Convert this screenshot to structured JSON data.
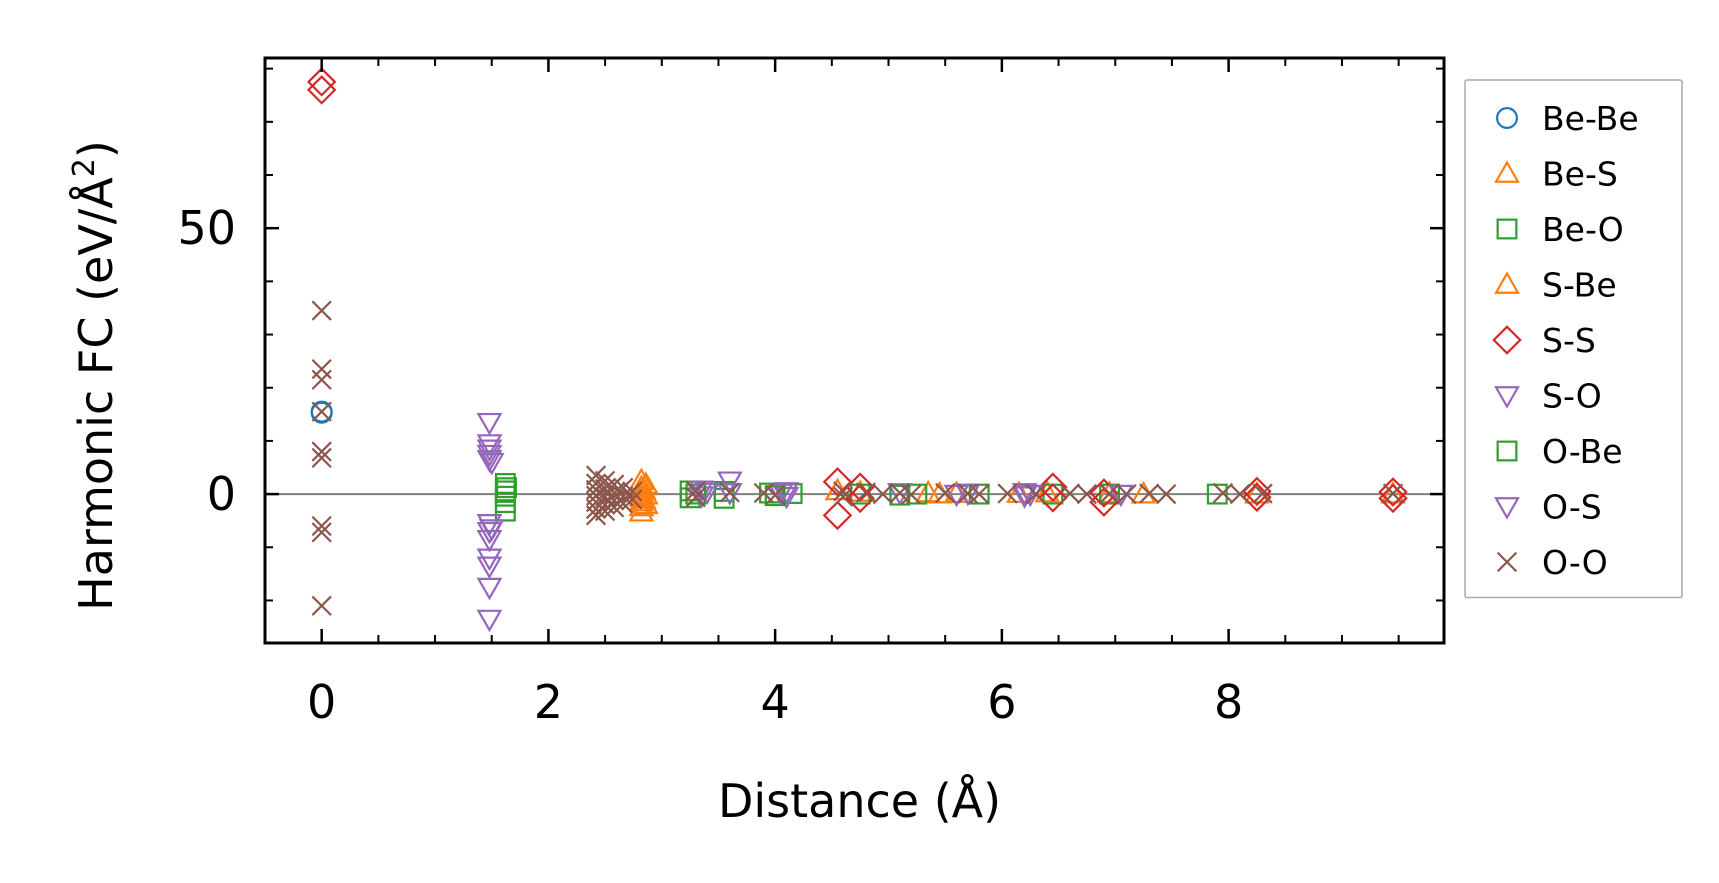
{
  "chart_data": {
    "type": "scatter",
    "title": "",
    "xlabel": "Distance (Å)",
    "ylabel": {
      "main": "Harmonic FC (eV/Å",
      "superscript": "2",
      "close": ")"
    },
    "xlim": [
      -0.5,
      9.9
    ],
    "ylim": [
      -28,
      82
    ],
    "x_ticks": [
      0,
      2,
      4,
      6,
      8
    ],
    "x_tick_labels": [
      "0",
      "2",
      "4",
      "6",
      "8"
    ],
    "y_ticks": [
      0,
      50
    ],
    "y_tick_labels": [
      "0",
      "50"
    ],
    "x_minor_step": 0.5,
    "y_minor_step": 10,
    "zero_line": true,
    "grid": false,
    "legend_position": "outside-right",
    "series": [
      {
        "name": "Be-Be",
        "marker": "circle",
        "color": "#1f77b4",
        "points": [
          [
            0,
            15.5
          ],
          [
            0,
            15.3
          ]
        ]
      },
      {
        "name": "Be-S",
        "marker": "triangle-up",
        "color": "#ff7f0e",
        "points": [
          [
            2.82,
            2.5
          ],
          [
            2.82,
            1.2
          ],
          [
            2.82,
            0.3
          ],
          [
            2.82,
            -0.6
          ],
          [
            2.82,
            -1.5
          ],
          [
            2.82,
            -2.4
          ],
          [
            2.82,
            -3.4
          ],
          [
            2.86,
            1.8
          ],
          [
            2.86,
            -0.2
          ],
          [
            2.86,
            -2.0
          ],
          [
            4.55,
            0.6
          ],
          [
            4.75,
            0.3
          ],
          [
            5.35,
            0.2
          ],
          [
            5.6,
            0.1
          ],
          [
            6.4,
            0.2
          ],
          [
            6.95,
            0.1
          ],
          [
            7.25,
            0.0
          ],
          [
            8.25,
            0.0
          ],
          [
            9.45,
            0.0
          ]
        ]
      },
      {
        "name": "Be-O",
        "marker": "square",
        "color": "#2ca02c",
        "points": [
          [
            1.62,
            2.0
          ],
          [
            1.62,
            0.6
          ],
          [
            1.62,
            -0.4
          ],
          [
            1.62,
            -1.6
          ],
          [
            1.62,
            -3.2
          ],
          [
            3.25,
            0.6
          ],
          [
            3.25,
            -0.7
          ],
          [
            3.55,
            0.5
          ],
          [
            3.55,
            -0.8
          ],
          [
            3.95,
            0.2
          ],
          [
            4.15,
            0.1
          ],
          [
            4.75,
            0.0
          ],
          [
            5.25,
            0.0
          ],
          [
            5.8,
            0.0
          ],
          [
            6.45,
            0.0
          ],
          [
            6.95,
            0.0
          ],
          [
            7.9,
            0.0
          ]
        ]
      },
      {
        "name": "S-Be",
        "marker": "triangle-up",
        "color": "#ff7f0e",
        "points": [
          [
            2.84,
            0.8
          ],
          [
            2.84,
            -1.0
          ],
          [
            5.45,
            0.0
          ],
          [
            6.15,
            0.1
          ]
        ]
      },
      {
        "name": "S-S",
        "marker": "diamond",
        "color": "#d62728",
        "points": [
          [
            0,
            77.5
          ],
          [
            0,
            76.0
          ],
          [
            4.55,
            2.3
          ],
          [
            4.55,
            -4.0
          ],
          [
            4.75,
            1.3
          ],
          [
            4.75,
            -0.8
          ],
          [
            6.45,
            1.3
          ],
          [
            6.45,
            -0.7
          ],
          [
            6.9,
            0.2
          ],
          [
            6.9,
            -1.5
          ],
          [
            8.25,
            0.5
          ],
          [
            8.25,
            -0.6
          ],
          [
            9.45,
            0.4
          ],
          [
            9.45,
            -0.8
          ]
        ]
      },
      {
        "name": "S-O",
        "marker": "triangle-down",
        "color": "#9467bd",
        "points": [
          [
            1.48,
            13.5
          ],
          [
            1.48,
            9.5
          ],
          [
            1.48,
            8.5
          ],
          [
            1.48,
            7.5
          ],
          [
            1.48,
            6.5
          ],
          [
            1.48,
            -5.5
          ],
          [
            1.48,
            -7.0
          ],
          [
            1.48,
            -8.5
          ],
          [
            1.48,
            -12.0
          ],
          [
            1.48,
            -13.5
          ],
          [
            1.48,
            -17.5
          ],
          [
            1.48,
            -23.5
          ],
          [
            3.35,
            0.8
          ],
          [
            3.35,
            -0.3
          ],
          [
            3.6,
            2.5
          ],
          [
            3.6,
            0.3
          ],
          [
            4.1,
            0.5
          ],
          [
            4.1,
            -0.4
          ],
          [
            5.1,
            0.3
          ],
          [
            5.7,
            0.2
          ],
          [
            6.2,
            0.3
          ],
          [
            6.2,
            -0.3
          ],
          [
            7.05,
            0.0
          ]
        ]
      },
      {
        "name": "O-Be",
        "marker": "square",
        "color": "#2ca02c",
        "points": [
          [
            1.63,
            1.2
          ],
          [
            3.3,
            0.0
          ],
          [
            4.0,
            -0.3
          ],
          [
            5.1,
            -0.2
          ]
        ]
      },
      {
        "name": "O-S",
        "marker": "triangle-down",
        "color": "#9467bd",
        "points": [
          [
            1.5,
            6.0
          ],
          [
            1.5,
            -6.5
          ],
          [
            3.4,
            0.4
          ],
          [
            4.05,
            0.2
          ],
          [
            5.6,
            0.0
          ],
          [
            6.25,
            0.0
          ]
        ]
      },
      {
        "name": "O-O",
        "marker": "x",
        "color": "#8c564b",
        "points": [
          [
            0,
            34.5
          ],
          [
            0,
            23.5
          ],
          [
            0,
            21.5
          ],
          [
            0,
            15.5
          ],
          [
            0,
            8.0
          ],
          [
            0,
            6.8
          ],
          [
            0,
            -6.0
          ],
          [
            0,
            -7.2
          ],
          [
            0,
            -21.0
          ],
          [
            2.42,
            3.5
          ],
          [
            2.42,
            2.0
          ],
          [
            2.42,
            0.8
          ],
          [
            2.42,
            -0.3
          ],
          [
            2.42,
            -1.5
          ],
          [
            2.42,
            -2.8
          ],
          [
            2.42,
            -4.0
          ],
          [
            2.5,
            2.5
          ],
          [
            2.5,
            1.0
          ],
          [
            2.5,
            -0.5
          ],
          [
            2.5,
            -2.0
          ],
          [
            2.5,
            -3.2
          ],
          [
            2.58,
            1.8
          ],
          [
            2.58,
            0.2
          ],
          [
            2.58,
            -1.2
          ],
          [
            2.58,
            -2.5
          ],
          [
            2.66,
            1.2
          ],
          [
            2.66,
            -0.4
          ],
          [
            2.66,
            -1.8
          ],
          [
            2.74,
            0.5
          ],
          [
            2.74,
            -1.0
          ],
          [
            3.3,
            0.6
          ],
          [
            3.3,
            -0.6
          ],
          [
            3.6,
            0.3
          ],
          [
            3.9,
            0.2
          ],
          [
            4.0,
            -0.2
          ],
          [
            4.6,
            0.5
          ],
          [
            4.6,
            -0.5
          ],
          [
            4.8,
            0.3
          ],
          [
            4.95,
            0.0
          ],
          [
            5.1,
            0.2
          ],
          [
            5.2,
            -0.1
          ],
          [
            5.5,
            0.2
          ],
          [
            5.7,
            0.1
          ],
          [
            5.8,
            0.0
          ],
          [
            6.05,
            0.1
          ],
          [
            6.3,
            0.0
          ],
          [
            6.6,
            0.1
          ],
          [
            6.75,
            0.0
          ],
          [
            6.95,
            0.1
          ],
          [
            7.1,
            0.0
          ],
          [
            7.3,
            0.1
          ],
          [
            7.45,
            0.0
          ],
          [
            7.95,
            0.2
          ],
          [
            8.1,
            0.0
          ],
          [
            8.3,
            0.1
          ],
          [
            9.45,
            0.1
          ]
        ]
      }
    ]
  }
}
